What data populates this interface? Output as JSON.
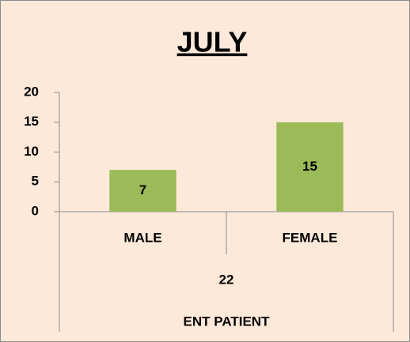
{
  "chart_data": {
    "type": "bar",
    "title": "JULY",
    "categories": [
      "MALE",
      "FEMALE"
    ],
    "values": [
      7,
      15
    ],
    "color": "#9bbb59",
    "category_groups": [
      "22",
      "ENT PATIENT"
    ],
    "ylim": [
      0,
      20
    ],
    "yticks": [
      0,
      5,
      10,
      15,
      20
    ],
    "grid": false,
    "data_labels": true
  }
}
